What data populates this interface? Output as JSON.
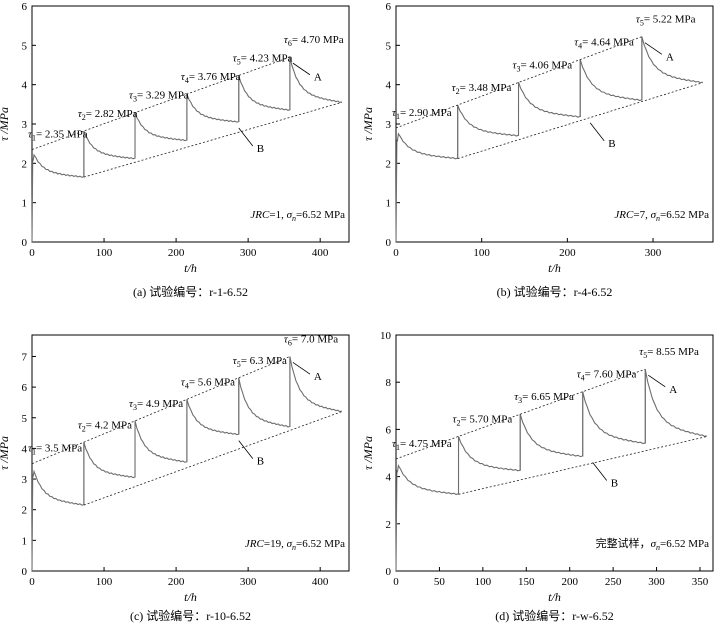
{
  "chart_data": [
    {
      "type": "line",
      "caption": "(a)  试验编号：r-1-6.52",
      "xlabel": "t/h",
      "ylabel": "τ /MPa",
      "xlim": [
        0,
        440
      ],
      "ylim": [
        0,
        6
      ],
      "xticks": [
        0,
        100,
        200,
        300,
        400
      ],
      "yticks": [
        0,
        1,
        2,
        3,
        4,
        5,
        6
      ],
      "condition": "JRC=1, σn=6.52 MPa",
      "stages": [
        {
          "label": "τ1= 2.35 MPa",
          "stress": 2.35,
          "t_start": 0,
          "t_end": 72,
          "peak": 2.35,
          "end": 1.65
        },
        {
          "label": "τ2= 2.82 MPa",
          "stress": 2.82,
          "t_start": 72,
          "t_end": 143,
          "peak": 2.82,
          "end": 2.12
        },
        {
          "label": "τ3= 3.29 MPa",
          "stress": 3.29,
          "t_start": 143,
          "t_end": 215,
          "peak": 3.29,
          "end": 2.58
        },
        {
          "label": "τ4= 3.76 MPa",
          "stress": 3.76,
          "t_start": 215,
          "t_end": 287,
          "peak": 3.76,
          "end": 3.05
        },
        {
          "label": "τ5= 4.23 MPa",
          "stress": 4.23,
          "t_start": 287,
          "t_end": 358,
          "peak": 4.23,
          "end": 3.35
        },
        {
          "label": "τ6= 4.70 MPa",
          "stress": 4.7,
          "t_start": 358,
          "t_end": 430,
          "peak": 4.7,
          "end": 3.55
        }
      ],
      "annotations": [
        "A",
        "B"
      ]
    },
    {
      "type": "line",
      "caption": "(b)  试验编号：r-4-6.52",
      "xlabel": "t/h",
      "ylabel": "τ /MPa",
      "xlim": [
        0,
        370
      ],
      "ylim": [
        0,
        6
      ],
      "xticks": [
        0,
        100,
        200,
        300
      ],
      "yticks": [
        0,
        1,
        2,
        3,
        4,
        5,
        6
      ],
      "condition": "JRC=7, σn=6.52 MPa",
      "stages": [
        {
          "label": "τ1= 2.90 MPa",
          "stress": 2.9,
          "t_start": 0,
          "t_end": 72,
          "peak": 2.9,
          "end": 2.12
        },
        {
          "label": "τ2= 3.48 MPa",
          "stress": 3.48,
          "t_start": 72,
          "t_end": 143,
          "peak": 3.48,
          "end": 2.7
        },
        {
          "label": "τ3= 4.06 MPa",
          "stress": 4.06,
          "t_start": 143,
          "t_end": 215,
          "peak": 4.06,
          "end": 3.18
        },
        {
          "label": "τ4= 4.64 MPa",
          "stress": 4.64,
          "t_start": 215,
          "t_end": 287,
          "peak": 4.64,
          "end": 3.6
        },
        {
          "label": "τ5= 5.22 MPa",
          "stress": 5.22,
          "t_start": 287,
          "t_end": 358,
          "peak": 5.22,
          "end": 4.05
        }
      ],
      "annotations": [
        "A",
        "B"
      ]
    },
    {
      "type": "line",
      "caption": "(c)  试验编号：r-10-6.52",
      "xlabel": "t/h",
      "ylabel": "τ /MPa",
      "xlim": [
        0,
        440
      ],
      "ylim": [
        0,
        7.7
      ],
      "xticks": [
        0,
        100,
        200,
        300,
        400
      ],
      "yticks": [
        0,
        1,
        2,
        3,
        4,
        5,
        6,
        7
      ],
      "condition": "JRC=19, σn=6.52 MPa",
      "stages": [
        {
          "label": "τ1= 3.5 MPa",
          "stress": 3.5,
          "t_start": 0,
          "t_end": 72,
          "peak": 3.5,
          "end": 2.15
        },
        {
          "label": "τ2= 4.2 MPa",
          "stress": 4.2,
          "t_start": 72,
          "t_end": 143,
          "peak": 4.2,
          "end": 3.05
        },
        {
          "label": "τ3= 4.9 MPa",
          "stress": 4.9,
          "t_start": 143,
          "t_end": 215,
          "peak": 4.9,
          "end": 3.55
        },
        {
          "label": "τ4= 5.6 MPa",
          "stress": 5.6,
          "t_start": 215,
          "t_end": 287,
          "peak": 5.6,
          "end": 4.45
        },
        {
          "label": "τ5= 6.3 MPa",
          "stress": 6.3,
          "t_start": 287,
          "t_end": 358,
          "peak": 6.3,
          "end": 4.7
        },
        {
          "label": "τ6= 7.0 MPa",
          "stress": 7.0,
          "t_start": 358,
          "t_end": 430,
          "peak": 7.0,
          "end": 5.2
        }
      ],
      "annotations": [
        "A",
        "B"
      ]
    },
    {
      "type": "line",
      "caption": "(d)  试验编号：r-w-6.52",
      "xlabel": "t/h",
      "ylabel": "τ /MPa",
      "xlim": [
        0,
        365
      ],
      "ylim": [
        0,
        10
      ],
      "xticks": [
        0,
        50,
        100,
        150,
        200,
        250,
        300,
        350
      ],
      "yticks": [
        0,
        2,
        4,
        6,
        8,
        10
      ],
      "condition": "完整试样，σn=6.52 MPa",
      "stages": [
        {
          "label": "τ1= 4.75 MPa",
          "stress": 4.75,
          "t_start": 0,
          "t_end": 72,
          "peak": 4.75,
          "end": 3.25
        },
        {
          "label": "τ2= 5.70 MPa",
          "stress": 5.7,
          "t_start": 72,
          "t_end": 143,
          "peak": 5.7,
          "end": 4.25
        },
        {
          "label": "τ3= 6.65 MPa",
          "stress": 6.65,
          "t_start": 143,
          "t_end": 215,
          "peak": 6.65,
          "end": 4.85
        },
        {
          "label": "τ4= 7.60 MPa",
          "stress": 7.6,
          "t_start": 215,
          "t_end": 287,
          "peak": 7.6,
          "end": 5.4
        },
        {
          "label": "τ5= 8.55 MPa",
          "stress": 8.55,
          "t_start": 287,
          "t_end": 358,
          "peak": 8.55,
          "end": 5.7
        }
      ],
      "annotations": [
        "A",
        "B"
      ]
    }
  ],
  "colors": {
    "curve": "#6e6e6e",
    "axis": "#000000",
    "guide": "#222222"
  }
}
